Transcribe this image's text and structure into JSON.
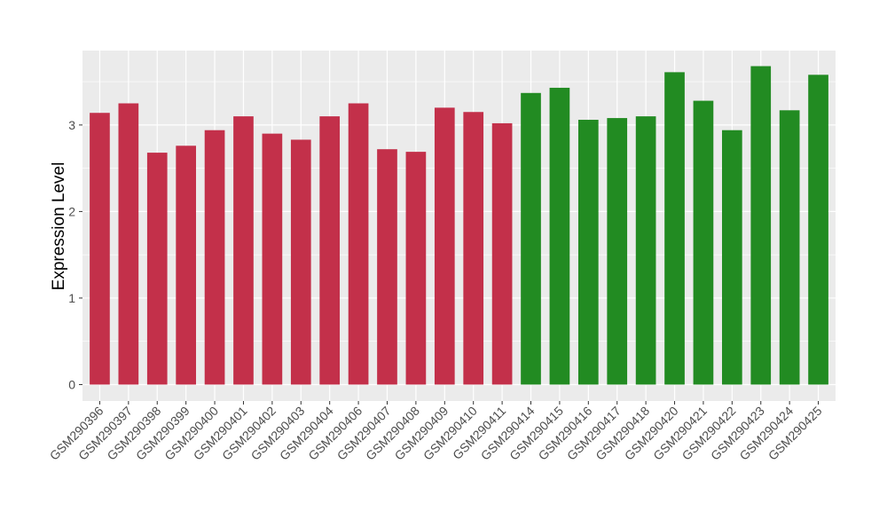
{
  "chart_data": {
    "type": "bar",
    "title": "",
    "xlabel": "",
    "ylabel": "Expression Level",
    "ylim": [
      -0.19,
      3.86
    ],
    "yticks": [
      0,
      1,
      2,
      3
    ],
    "grid": true,
    "legend": "none",
    "categories": [
      "GSM290396",
      "GSM290397",
      "GSM290398",
      "GSM290399",
      "GSM290400",
      "GSM290401",
      "GSM290402",
      "GSM290403",
      "GSM290404",
      "GSM290406",
      "GSM290407",
      "GSM290408",
      "GSM290409",
      "GSM290410",
      "GSM290411",
      "GSM290414",
      "GSM290415",
      "GSM290416",
      "GSM290417",
      "GSM290418",
      "GSM290420",
      "GSM290421",
      "GSM290422",
      "GSM290423",
      "GSM290424",
      "GSM290425"
    ],
    "values": [
      3.14,
      3.25,
      2.68,
      2.76,
      2.94,
      3.1,
      2.9,
      2.83,
      3.1,
      3.25,
      2.72,
      2.69,
      3.2,
      3.15,
      3.02,
      3.37,
      3.43,
      3.06,
      3.08,
      3.1,
      3.61,
      3.28,
      2.94,
      3.68,
      3.17,
      3.58
    ],
    "bar_colors": [
      "#C3304A",
      "#C3304A",
      "#C3304A",
      "#C3304A",
      "#C3304A",
      "#C3304A",
      "#C3304A",
      "#C3304A",
      "#C3304A",
      "#C3304A",
      "#C3304A",
      "#C3304A",
      "#C3304A",
      "#C3304A",
      "#C3304A",
      "#228B22",
      "#228B22",
      "#228B22",
      "#228B22",
      "#228B22",
      "#228B22",
      "#228B22",
      "#228B22",
      "#228B22",
      "#228B22",
      "#228B22"
    ],
    "panel_background": "#EBEBEB"
  }
}
